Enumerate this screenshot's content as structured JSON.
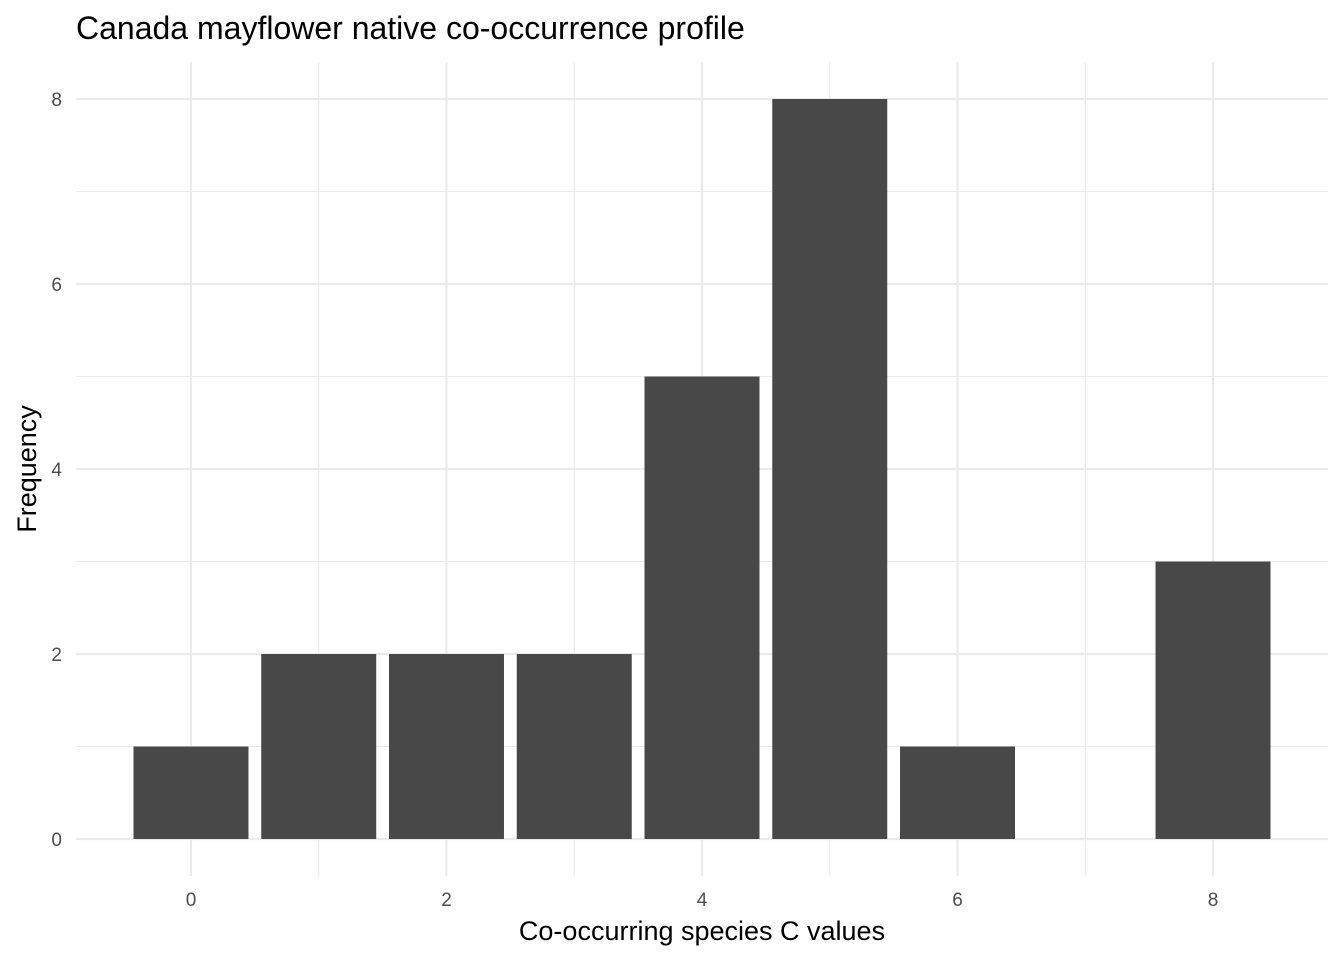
{
  "chart_data": {
    "type": "bar",
    "title": "Canada mayflower native co-occurrence profile",
    "xlabel": "Co-occurring species C values",
    "ylabel": "Frequency",
    "x": [
      0,
      1,
      2,
      3,
      4,
      5,
      6,
      8
    ],
    "values": [
      1,
      2,
      2,
      2,
      5,
      8,
      1,
      3
    ],
    "xlim": [
      -0.9,
      8.9
    ],
    "ylim": [
      -0.4,
      8.4
    ],
    "x_ticks": [
      0,
      2,
      4,
      6,
      8
    ],
    "y_ticks": [
      0,
      2,
      4,
      6,
      8
    ],
    "grid": true,
    "bar_color": "#484848",
    "grid_color": "#ebebeb"
  }
}
